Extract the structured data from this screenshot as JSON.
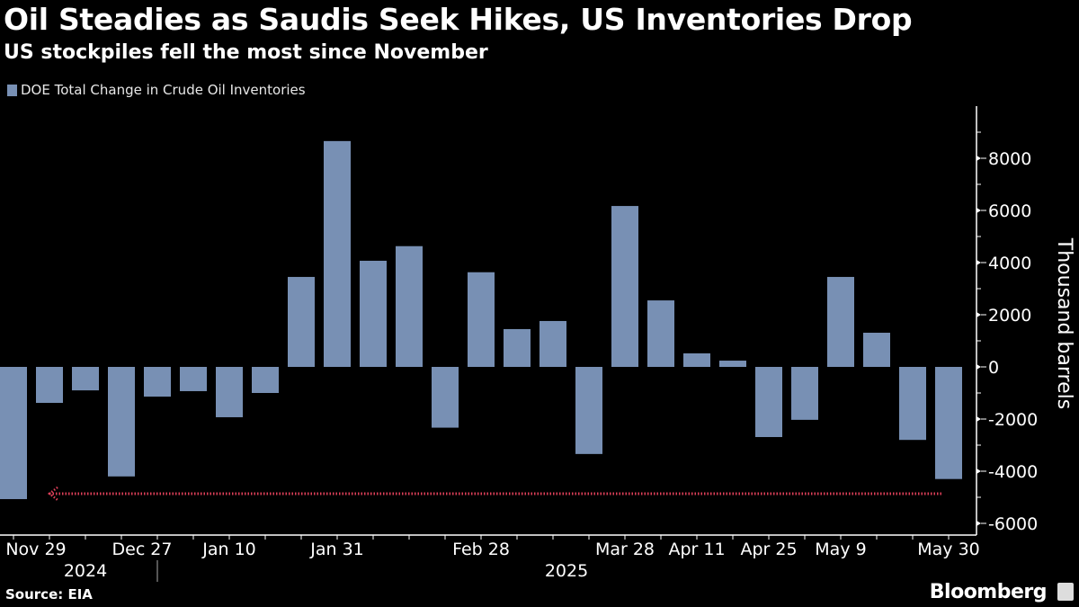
{
  "chart_data": {
    "type": "bar",
    "title": "Oil Steadies as Saudis Seek Hikes, US Inventories Drop",
    "subtitle": "US stockpiles fell the most since November",
    "legend": [
      "DOE Total Change in Crude Oil Inventories"
    ],
    "ylabel": "Thousand barrels",
    "ylim": [
      -6000,
      9000
    ],
    "yticks": [
      -6000,
      -4000,
      -2000,
      0,
      2000,
      4000,
      6000,
      8000
    ],
    "axis_position": "right",
    "bar_color": "#7890b4",
    "categories": [
      "2024-11-29",
      "2024-12-06",
      "2024-12-13",
      "2024-12-20",
      "2024-12-27",
      "2025-01-03",
      "2025-01-10",
      "2025-01-17",
      "2025-01-24",
      "2025-01-31",
      "2025-02-07",
      "2025-02-14",
      "2025-02-21",
      "2025-02-28",
      "2025-03-07",
      "2025-03-14",
      "2025-03-21",
      "2025-03-28",
      "2025-04-04",
      "2025-04-11",
      "2025-04-18",
      "2025-04-25",
      "2025-05-02",
      "2025-05-09",
      "2025-05-16",
      "2025-05-23",
      "2025-05-30"
    ],
    "values": [
      -5070,
      -1380,
      -900,
      -4200,
      -1140,
      -930,
      -1930,
      -1000,
      3450,
      8660,
      4070,
      4630,
      -2330,
      3630,
      1450,
      1760,
      -3340,
      6170,
      2550,
      520,
      240,
      -2690,
      -2030,
      3450,
      1310,
      -2800,
      -4300
    ],
    "xtick_labels": [
      {
        "label": "Nov 29",
        "index": 0
      },
      {
        "label": "Dec 27",
        "index": 4
      },
      {
        "label": "Jan 10",
        "index": 6
      },
      {
        "label": "Jan 31",
        "index": 9
      },
      {
        "label": "Feb 28",
        "index": 13
      },
      {
        "label": "Mar 28",
        "index": 17
      },
      {
        "label": "Apr 11",
        "index": 19
      },
      {
        "label": "Apr 25",
        "index": 21
      },
      {
        "label": "May 9",
        "index": 23
      },
      {
        "label": "May 30",
        "index": 26
      }
    ],
    "year_labels": [
      {
        "label": "2024",
        "index": 2
      },
      {
        "label": "2025",
        "index": 15
      }
    ],
    "annotation": {
      "type": "dotted-arrow",
      "color": "#e0405a",
      "value": -4860,
      "from_index": 26,
      "to_index": 1
    }
  },
  "footer": {
    "source": "Source: EIA",
    "brand": "Bloomberg"
  }
}
